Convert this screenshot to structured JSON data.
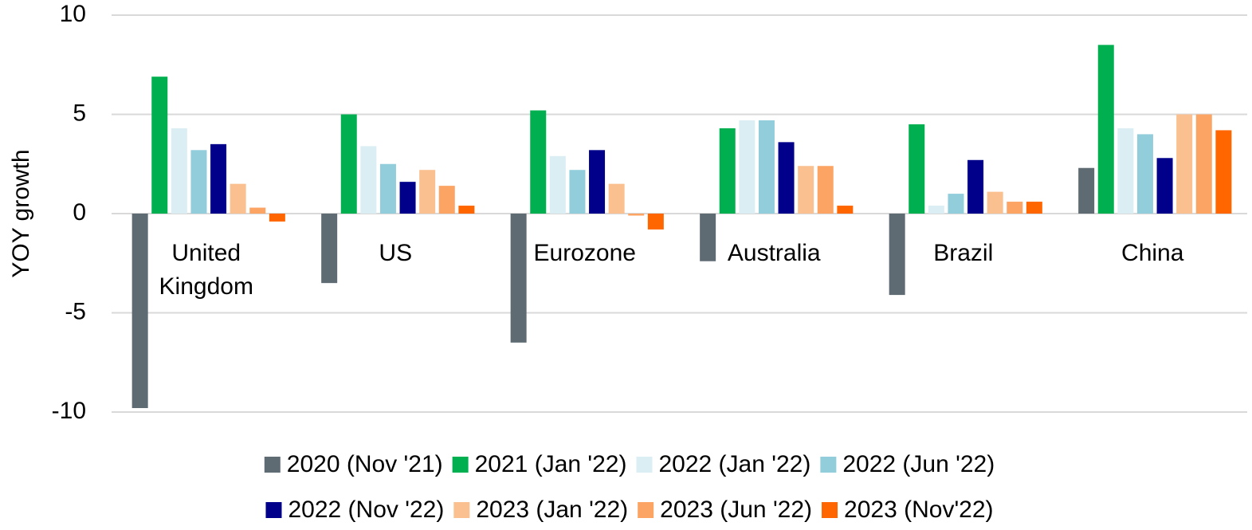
{
  "chart_data": {
    "type": "bar",
    "ylabel": "YOY growth",
    "categories": [
      "United Kingdom",
      "US",
      "Eurozone",
      "Australia",
      "Brazil",
      "China"
    ],
    "series": [
      {
        "name": "2020 (Nov '21)",
        "color": "#5f6b73",
        "values": [
          -9.8,
          -3.5,
          -6.5,
          -2.4,
          -4.1,
          2.3
        ]
      },
      {
        "name": "2021 (Jan '22)",
        "color": "#00b050",
        "values": [
          6.9,
          5.0,
          5.2,
          4.3,
          4.5,
          8.5
        ]
      },
      {
        "name": "2022 (Jan '22)",
        "color": "#dbeef4",
        "values": [
          4.3,
          3.4,
          2.9,
          4.7,
          0.4,
          4.3
        ]
      },
      {
        "name": "2022 (Jun '22)",
        "color": "#92cddc",
        "values": [
          3.2,
          2.5,
          2.2,
          4.7,
          1.0,
          4.0
        ]
      },
      {
        "name": "2022 (Nov '22)",
        "color": "#00008b",
        "values": [
          3.5,
          1.6,
          3.2,
          3.6,
          2.7,
          2.8
        ]
      },
      {
        "name": "2023 (Jan '22)",
        "color": "#fac090",
        "values": [
          1.5,
          2.2,
          1.5,
          2.4,
          1.1,
          5.0
        ]
      },
      {
        "name": "2023 (Jun '22)",
        "color": "#fba463",
        "values": [
          0.3,
          1.4,
          -0.1,
          2.4,
          0.6,
          5.0
        ]
      },
      {
        "name": "2023 (Nov'22)",
        "color": "#ff6600",
        "values": [
          -0.4,
          0.4,
          -0.8,
          0.4,
          0.6,
          4.2
        ]
      }
    ],
    "ylim": [
      -10,
      10
    ],
    "yticks": [
      -10,
      -5,
      0,
      5,
      10
    ],
    "grid": true,
    "legend": "bottom"
  }
}
